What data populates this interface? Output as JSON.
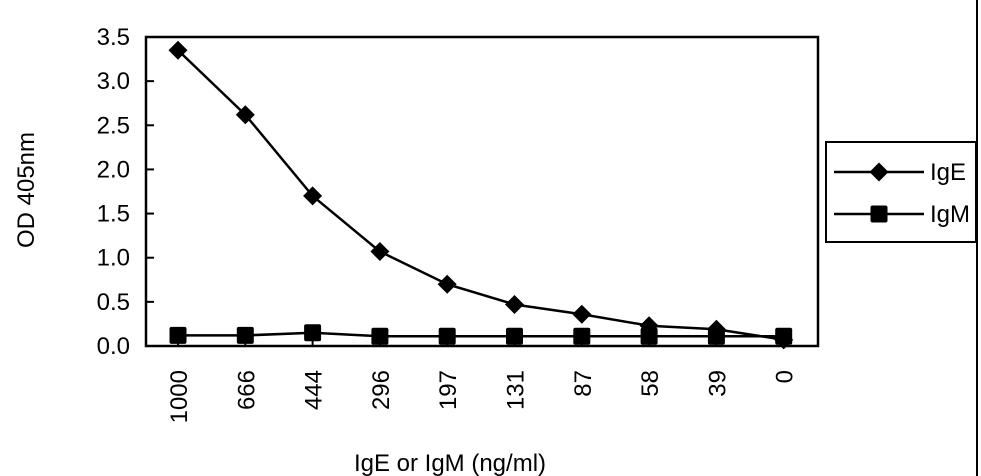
{
  "chart_data": {
    "type": "line",
    "title": "",
    "xlabel": "IgE or IgM  (ng/ml)",
    "ylabel": "OD 405nm",
    "categories": [
      "1000",
      "666",
      "444",
      "296",
      "197",
      "131",
      "87",
      "58",
      "39",
      "0"
    ],
    "yticks": [
      "0.0",
      "0.5",
      "1.0",
      "1.5",
      "2.0",
      "2.5",
      "3.0",
      "3.5"
    ],
    "ylim": [
      0,
      3.5
    ],
    "grid": false,
    "legend_position": "right",
    "series": [
      {
        "name": "IgE",
        "marker": "diamond",
        "values": [
          3.35,
          2.62,
          1.7,
          1.07,
          0.7,
          0.47,
          0.36,
          0.23,
          0.19,
          0.07
        ]
      },
      {
        "name": "IgM",
        "marker": "square",
        "values": [
          0.12,
          0.12,
          0.15,
          0.11,
          0.11,
          0.11,
          0.11,
          0.11,
          0.11,
          0.11
        ]
      }
    ],
    "colors": {
      "line": "#000000",
      "background": "#ffffff"
    }
  }
}
